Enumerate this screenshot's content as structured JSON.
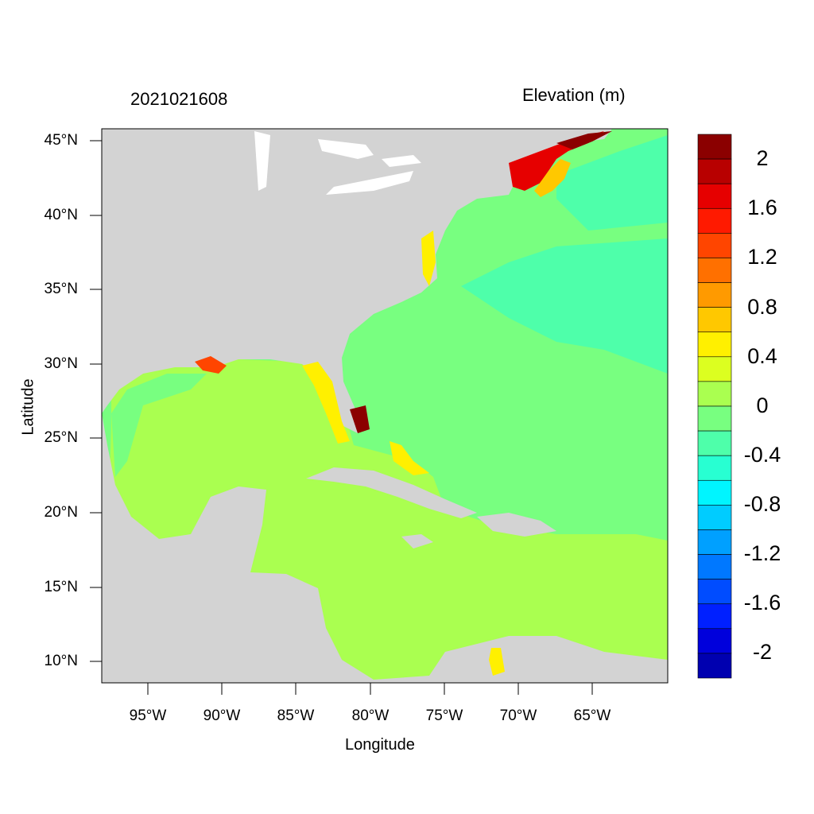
{
  "title_left": "2021021608",
  "title_right": "Elevation (m)",
  "xlabel": "Longitude",
  "ylabel": "Latitude",
  "lat_ticks": [
    "45°N",
    "40°N",
    "35°N",
    "30°N",
    "25°N",
    "20°N",
    "15°N",
    "10°N"
  ],
  "lon_ticks": [
    "95°W",
    "90°W",
    "85°W",
    "80°W",
    "75°W",
    "70°W",
    "65°W"
  ],
  "colorbar": {
    "labels": [
      "2",
      "1.6",
      "1.2",
      "0.8",
      "0.4",
      "0",
      "-0.4",
      "-0.8",
      "-1.2",
      "-1.6",
      "-2"
    ],
    "colors": [
      "#8b0000",
      "#b80000",
      "#e60000",
      "#ff1a00",
      "#ff4500",
      "#ff7000",
      "#ff9a00",
      "#ffc800",
      "#fff000",
      "#dcff20",
      "#aaff50",
      "#78ff80",
      "#4effaa",
      "#28ffd2",
      "#00f5ff",
      "#00ccff",
      "#00a0ff",
      "#0078ff",
      "#004cff",
      "#0020ff",
      "#0000dc",
      "#0000b0"
    ]
  },
  "map_colors": {
    "land": "#d3d3d3",
    "atlantic": "#78ff80",
    "gulf_caribbean": "#aaff50"
  }
}
